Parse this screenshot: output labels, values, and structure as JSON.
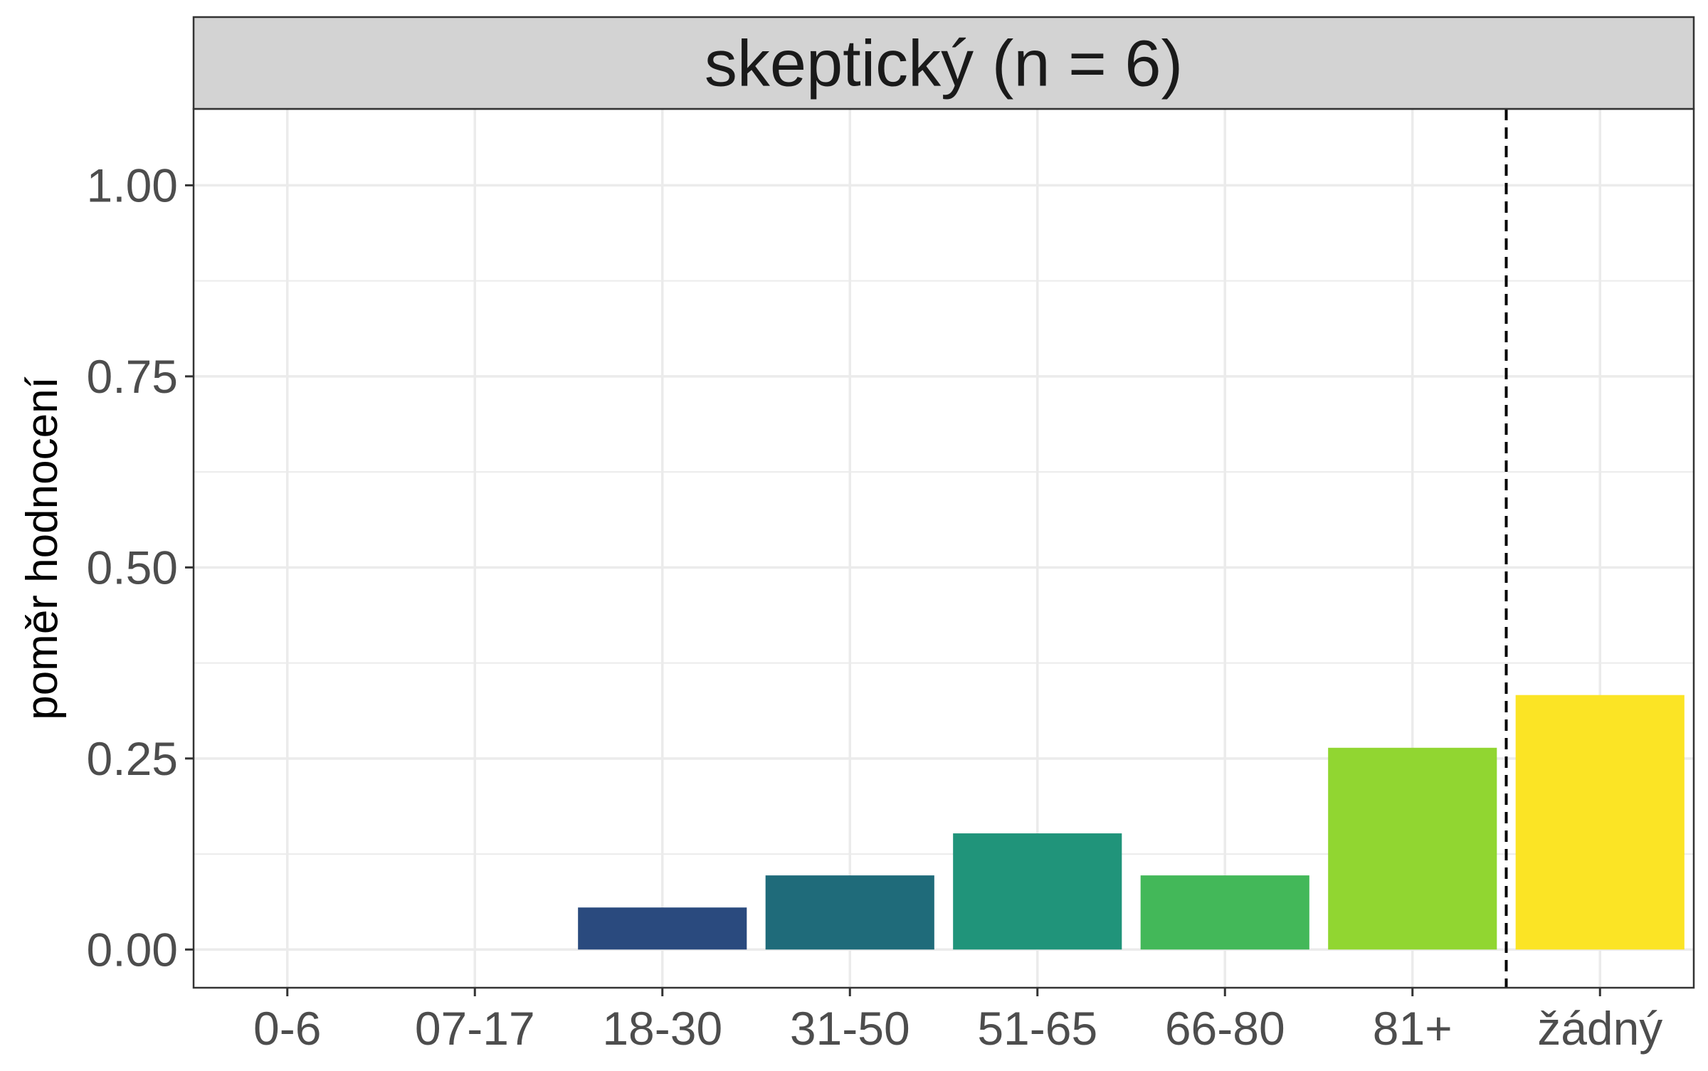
{
  "chart_data": {
    "type": "bar",
    "strip_title": "skeptický (n = 6)",
    "ylabel": "poměr hodnocení",
    "xlabel": "",
    "categories": [
      "0-6",
      "07-17",
      "18-30",
      "31-50",
      "51-65",
      "66-80",
      "81+",
      "žádný"
    ],
    "values": [
      0,
      0,
      0.055,
      0.097,
      0.152,
      0.097,
      0.264,
      0.333
    ],
    "ylim": [
      -0.05,
      1.1
    ],
    "yticks": [
      0,
      0.25,
      0.5,
      0.75,
      1.0
    ],
    "ytick_labels": [
      "0.00",
      "0.25",
      "0.50",
      "0.75",
      "1.00"
    ],
    "grid": true,
    "reference_line": {
      "style": "dashed",
      "between": [
        "81+",
        "žádný"
      ]
    },
    "colors": [
      "#440154",
      "#46327E",
      "#2A4A7E",
      "#1F6B7A",
      "#20947A",
      "#43B859",
      "#91D631",
      "#FBE425"
    ],
    "strip_background": "#D3D3D3"
  }
}
